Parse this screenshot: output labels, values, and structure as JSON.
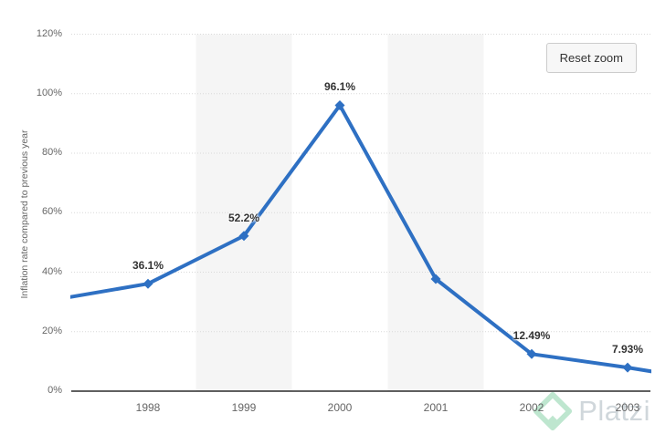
{
  "chart": {
    "y_axis": {
      "title": "Inflation rate compared to previous year",
      "tick_labels": [
        "0%",
        "20%",
        "40%",
        "60%",
        "80%",
        "100%",
        "120%"
      ]
    },
    "x_axis": {
      "tick_labels": [
        "1998",
        "1999",
        "2000",
        "2001",
        "2002",
        "2003"
      ]
    },
    "reset_zoom_label": "Reset zoom"
  },
  "watermark": {
    "text": "Platzi",
    "logo_icon": "platzi-diamond-logo",
    "logo_color": "#b7e4ca",
    "text_color": "#ccd3d8"
  },
  "colors": {
    "line": "#2e70c3",
    "marker": "#2e70c3",
    "band": "#f5f5f5",
    "grid": "#d9d9d9",
    "axis_line": "#2b2b2b",
    "tick_label": "#666666",
    "data_label": "#333333",
    "button_bg": "#f7f7f7",
    "button_border": "#cccccc",
    "button_text": "#333333",
    "background": "#ffffff"
  },
  "chart_data": {
    "type": "line",
    "title": "",
    "x": [
      1998,
      1999,
      2000,
      2001,
      2002,
      2003
    ],
    "values": [
      36.1,
      52.2,
      96.1,
      37.7,
      12.49,
      7.93
    ],
    "data_labels": [
      "36.1%",
      "52.2%",
      "96.1%",
      null,
      "12.49%",
      "7.93%"
    ],
    "xlabel": "",
    "ylabel": "Inflation rate compared to previous year",
    "ylim": [
      0,
      120
    ],
    "y_tick_step": 20,
    "legend": "none",
    "grid": "horizontal-dotted",
    "marker_symbol": "diamond",
    "shaded_x_columns": [
      1999,
      2001
    ],
    "edge_anchors": [
      {
        "x": 1997,
        "value": 30.6
      },
      {
        "x": 2004,
        "value": 2.7
      }
    ],
    "zoom_state": "zoomed-in (Reset zoom button visible)"
  }
}
